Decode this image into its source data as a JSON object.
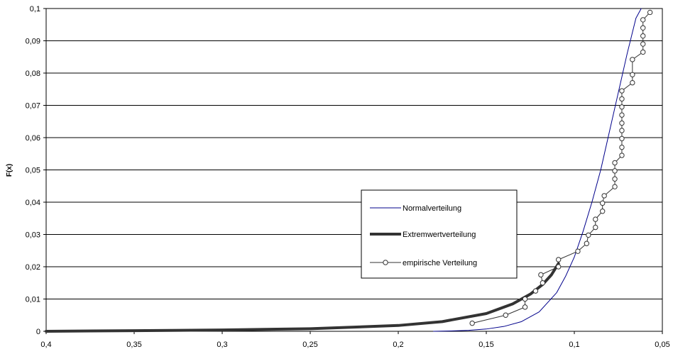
{
  "chart_data": {
    "type": "line",
    "title": "",
    "xlabel": "",
    "ylabel": "F(x)",
    "xlim": [
      0.4,
      0.05
    ],
    "ylim": [
      0,
      0.1
    ],
    "x_reversed": true,
    "grid": true,
    "x_tick_labels": [
      "0,4",
      "0,35",
      "0,3",
      "0,25",
      "0,2",
      "0,15",
      "0,1",
      "0,05"
    ],
    "y_tick_labels": [
      "0",
      "0,01",
      "0,02",
      "0,03",
      "0,04",
      "0,05",
      "0,06",
      "0,07",
      "0,08",
      "0,09",
      "0,1"
    ],
    "legend_position": "center-right",
    "series": [
      {
        "name": "Normalverteilung",
        "color": "#00008B",
        "x": [
          0.18,
          0.17,
          0.16,
          0.15,
          0.14,
          0.13,
          0.12,
          0.11,
          0.105,
          0.1,
          0.095,
          0.09,
          0.085,
          0.08,
          0.075,
          0.07,
          0.065,
          0.062
        ],
        "y": [
          0.0,
          0.0001,
          0.0003,
          0.0007,
          0.0015,
          0.003,
          0.006,
          0.012,
          0.017,
          0.023,
          0.031,
          0.04,
          0.05,
          0.062,
          0.074,
          0.086,
          0.097,
          0.1
        ]
      },
      {
        "name": "Extremwertverteilung",
        "color": "#333333",
        "x": [
          0.4,
          0.35,
          0.3,
          0.25,
          0.2,
          0.175,
          0.15,
          0.135,
          0.125,
          0.118,
          0.113,
          0.109
        ],
        "y": [
          0.0,
          0.0002,
          0.0004,
          0.0008,
          0.0018,
          0.003,
          0.0055,
          0.0085,
          0.0115,
          0.0145,
          0.0175,
          0.021
        ]
      },
      {
        "name": "empirische Verteilung",
        "color": "#333333",
        "marker": "circle",
        "x": [
          0.158,
          0.139,
          0.128,
          0.128,
          0.122,
          0.118,
          0.119,
          0.109,
          0.109,
          0.098,
          0.093,
          0.092,
          0.088,
          0.088,
          0.084,
          0.084,
          0.083,
          0.077,
          0.077,
          0.077,
          0.077,
          0.073,
          0.073,
          0.073,
          0.073,
          0.073,
          0.073,
          0.073,
          0.073,
          0.073,
          0.067,
          0.067,
          0.067,
          0.061,
          0.061,
          0.061,
          0.061,
          0.061,
          0.057
        ],
        "y": [
          0.0025,
          0.005,
          0.0075,
          0.01,
          0.0125,
          0.015,
          0.0175,
          0.02,
          0.0222,
          0.0248,
          0.0272,
          0.0298,
          0.0322,
          0.0347,
          0.0372,
          0.0397,
          0.042,
          0.0448,
          0.0472,
          0.0497,
          0.0522,
          0.0545,
          0.057,
          0.0597,
          0.0622,
          0.0645,
          0.067,
          0.0695,
          0.072,
          0.0745,
          0.077,
          0.0795,
          0.0842,
          0.0865,
          0.089,
          0.0915,
          0.094,
          0.0965,
          0.0988
        ]
      }
    ]
  }
}
